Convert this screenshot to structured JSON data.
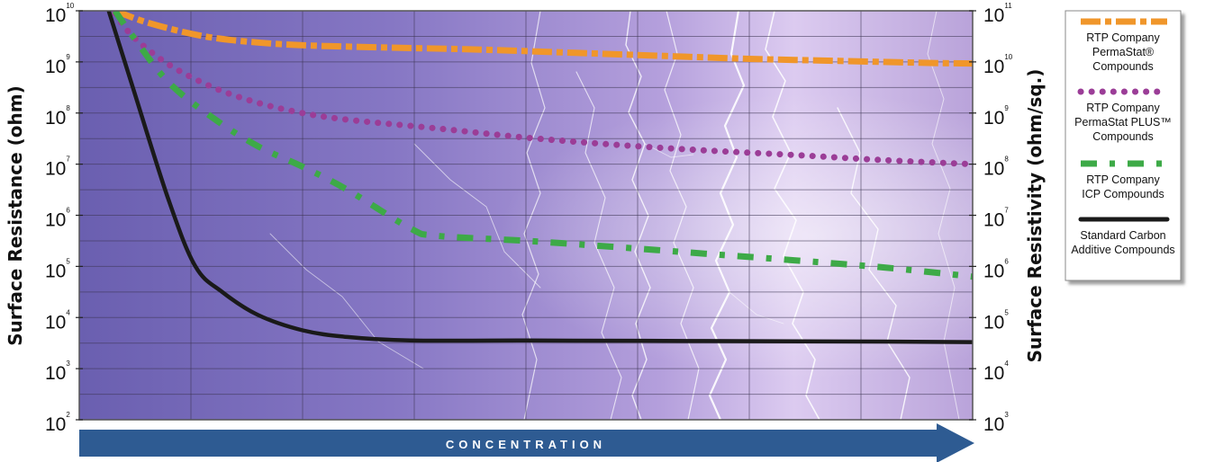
{
  "chart_data": {
    "type": "line",
    "xlabel": "CONCENTRATION",
    "ylabel": "Surface Resistance (ohm)",
    "ylabel_right": "Surface Resistivity (ohm/sq.)",
    "x_scale": "relative",
    "xlim": [
      0,
      1
    ],
    "y_scale": "log",
    "ylim": [
      2,
      10
    ],
    "y_ticks": [
      {
        "base": "10",
        "exp": "10"
      },
      {
        "base": "10",
        "exp": "9"
      },
      {
        "base": "10",
        "exp": "8"
      },
      {
        "base": "10",
        "exp": "7"
      },
      {
        "base": "10",
        "exp": "6"
      },
      {
        "base": "10",
        "exp": "5"
      },
      {
        "base": "10",
        "exp": "4"
      },
      {
        "base": "10",
        "exp": "3"
      },
      {
        "base": "10",
        "exp": "2"
      }
    ],
    "y_ticks_right": [
      {
        "base": "10",
        "exp": "11"
      },
      {
        "base": "10",
        "exp": "10"
      },
      {
        "base": "10",
        "exp": "9"
      },
      {
        "base": "10",
        "exp": "8"
      },
      {
        "base": "10",
        "exp": "7"
      },
      {
        "base": "10",
        "exp": "6"
      },
      {
        "base": "10",
        "exp": "5"
      },
      {
        "base": "10",
        "exp": "4"
      },
      {
        "base": "10",
        "exp": "3"
      }
    ],
    "grid": true,
    "legend_position": "right",
    "series": [
      {
        "name": "RTP Company PermaStat® Compounds",
        "legend_lines": [
          "RTP Company",
          "PermaStat®",
          "Compounds"
        ],
        "color": "#F0962A",
        "style": "dash-dot",
        "x": [
          0.04,
          0.08,
          0.14,
          0.2,
          0.26,
          0.35,
          0.45,
          0.55,
          0.65,
          0.75,
          0.85,
          0.95,
          1.0
        ],
        "y": [
          10.0,
          9.75,
          9.5,
          9.38,
          9.32,
          9.28,
          9.24,
          9.18,
          9.12,
          9.06,
          9.02,
          8.98,
          8.97
        ]
      },
      {
        "name": "RTP Company PermaStat PLUS™ Compounds",
        "legend_lines": [
          "RTP Company",
          "PermaStat PLUS™",
          "Compounds"
        ],
        "color": "#9B3D97",
        "style": "dotted",
        "x": [
          0.04,
          0.06,
          0.1,
          0.15,
          0.2,
          0.25,
          0.3,
          0.4,
          0.5,
          0.6,
          0.7,
          0.8,
          0.9,
          1.0
        ],
        "y": [
          9.95,
          9.5,
          8.95,
          8.5,
          8.2,
          8.0,
          7.87,
          7.7,
          7.52,
          7.38,
          7.27,
          7.18,
          7.08,
          7.0
        ]
      },
      {
        "name": "RTP Company ICP Compounds",
        "legend_lines": [
          "RTP Company",
          "ICP Compounds"
        ],
        "color": "#3DAA47",
        "style": "dashed",
        "x": [
          0.04,
          0.06,
          0.1,
          0.15,
          0.2,
          0.25,
          0.3,
          0.37,
          0.4,
          0.5,
          0.6,
          0.7,
          0.8,
          0.9,
          1.0
        ],
        "y": [
          10.0,
          9.5,
          8.6,
          7.9,
          7.35,
          6.95,
          6.5,
          5.75,
          5.6,
          5.5,
          5.38,
          5.25,
          5.12,
          4.98,
          4.8
        ]
      },
      {
        "name": "Standard Carbon Additive Compounds",
        "legend_lines": [
          "Standard Carbon",
          "Additive Compounds"
        ],
        "color": "#1a1a1a",
        "style": "solid",
        "x": [
          0.033,
          0.06,
          0.1,
          0.13,
          0.16,
          0.2,
          0.25,
          0.3,
          0.37,
          0.5,
          0.7,
          0.9,
          1.0
        ],
        "y": [
          10.0,
          8.5,
          6.3,
          5.0,
          4.5,
          4.05,
          3.75,
          3.62,
          3.55,
          3.55,
          3.54,
          3.53,
          3.52
        ]
      }
    ]
  }
}
